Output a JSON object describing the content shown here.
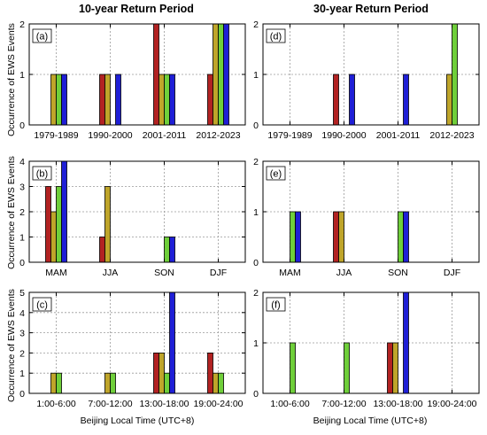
{
  "figure": {
    "col_titles": [
      "10-year Return Period",
      "30-year Return Period"
    ],
    "ylabel": "Occurrence of EWS Events",
    "xlabel": "Beijing Local Time (UTC+8)"
  },
  "colors": [
    "#b22222",
    "#bfa52a",
    "#6fcf3a",
    "#1f1fd6"
  ],
  "chart_data": [
    {
      "type": "bar",
      "panel": "(a)",
      "ylim": [
        0,
        2
      ],
      "yticks": [
        0,
        1,
        2
      ],
      "categories": [
        "1979-1989",
        "1990-2000",
        "2001-2011",
        "2012-2023"
      ],
      "series": [
        {
          "values": [
            0,
            1,
            2,
            1
          ]
        },
        {
          "values": [
            1,
            1,
            1,
            2
          ]
        },
        {
          "values": [
            1,
            0,
            1,
            2
          ]
        },
        {
          "values": [
            1,
            1,
            1,
            2
          ]
        }
      ]
    },
    {
      "type": "bar",
      "panel": "(d)",
      "ylim": [
        0,
        2
      ],
      "yticks": [
        0,
        1,
        2
      ],
      "categories": [
        "1979-1989",
        "1990-2000",
        "2001-2011",
        "2012-2023"
      ],
      "series": [
        {
          "values": [
            0,
            1,
            0,
            0
          ]
        },
        {
          "values": [
            0,
            0,
            0,
            1
          ]
        },
        {
          "values": [
            0,
            0,
            0,
            2
          ]
        },
        {
          "values": [
            0,
            1,
            1,
            0
          ]
        }
      ]
    },
    {
      "type": "bar",
      "panel": "(b)",
      "ylim": [
        0,
        4
      ],
      "yticks": [
        0,
        1,
        2,
        3,
        4
      ],
      "categories": [
        "MAM",
        "JJA",
        "SON",
        "DJF"
      ],
      "series": [
        {
          "values": [
            3,
            1,
            0,
            0
          ]
        },
        {
          "values": [
            2,
            3,
            0,
            0
          ]
        },
        {
          "values": [
            3,
            0,
            1,
            0
          ]
        },
        {
          "values": [
            4,
            0,
            1,
            0
          ]
        }
      ]
    },
    {
      "type": "bar",
      "panel": "(e)",
      "ylim": [
        0,
        2
      ],
      "yticks": [
        0,
        1,
        2
      ],
      "categories": [
        "MAM",
        "JJA",
        "SON",
        "DJF"
      ],
      "series": [
        {
          "values": [
            0,
            1,
            0,
            0
          ]
        },
        {
          "values": [
            0,
            1,
            0,
            0
          ]
        },
        {
          "values": [
            1,
            0,
            1,
            0
          ]
        },
        {
          "values": [
            1,
            0,
            1,
            0
          ]
        }
      ]
    },
    {
      "type": "bar",
      "panel": "(c)",
      "ylim": [
        0,
        5
      ],
      "yticks": [
        0,
        1,
        2,
        3,
        4,
        5
      ],
      "categories": [
        "1:00-6:00",
        "7:00-12:00",
        "13:00-18:00",
        "19:00-24:00"
      ],
      "series": [
        {
          "values": [
            0,
            0,
            2,
            2
          ]
        },
        {
          "values": [
            1,
            1,
            2,
            1
          ]
        },
        {
          "values": [
            1,
            1,
            1,
            1
          ]
        },
        {
          "values": [
            0,
            0,
            5,
            0
          ]
        }
      ]
    },
    {
      "type": "bar",
      "panel": "(f)",
      "ylim": [
        0,
        2
      ],
      "yticks": [
        0,
        1,
        2
      ],
      "categories": [
        "1:00-6:00",
        "7:00-12:00",
        "13:00-18:00",
        "19:00-24:00"
      ],
      "series": [
        {
          "values": [
            0,
            0,
            1,
            0
          ]
        },
        {
          "values": [
            0,
            0,
            1,
            0
          ]
        },
        {
          "values": [
            1,
            1,
            0,
            0
          ]
        },
        {
          "values": [
            0,
            0,
            2,
            0
          ]
        }
      ]
    }
  ]
}
